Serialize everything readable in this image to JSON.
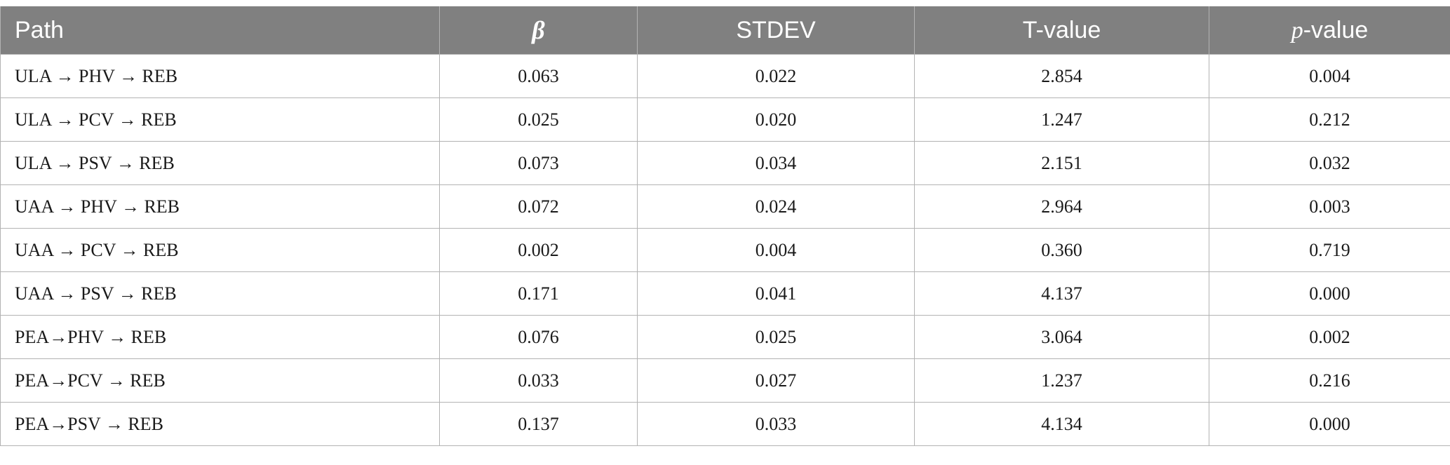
{
  "table": {
    "headers": {
      "path": "Path",
      "beta": "β",
      "stdev": "STDEV",
      "t_value": "T-value",
      "p_value_italic": "p",
      "p_value_rest": "-value"
    },
    "rows": [
      {
        "path": "ULA → PHV → REB",
        "beta": "0.063",
        "stdev": "0.022",
        "t": "2.854",
        "p": "0.004"
      },
      {
        "path": "ULA → PCV → REB",
        "beta": "0.025",
        "stdev": "0.020",
        "t": "1.247",
        "p": "0.212"
      },
      {
        "path": "ULA → PSV → REB",
        "beta": "0.073",
        "stdev": "0.034",
        "t": "2.151",
        "p": "0.032"
      },
      {
        "path": "UAA → PHV → REB",
        "beta": "0.072",
        "stdev": "0.024",
        "t": "2.964",
        "p": "0.003"
      },
      {
        "path": "UAA → PCV → REB",
        "beta": "0.002",
        "stdev": "0.004",
        "t": "0.360",
        "p": "0.719"
      },
      {
        "path": "UAA → PSV → REB",
        "beta": "0.171",
        "stdev": "0.041",
        "t": "4.137",
        "p": "0.000"
      },
      {
        "path": "PEA→PHV → REB",
        "beta": "0.076",
        "stdev": "0.025",
        "t": "3.064",
        "p": "0.002"
      },
      {
        "path": "PEA→PCV → REB",
        "beta": "0.033",
        "stdev": "0.027",
        "t": "1.237",
        "p": "0.216"
      },
      {
        "path": "PEA→PSV → REB",
        "beta": "0.137",
        "stdev": "0.033",
        "t": "4.134",
        "p": "0.000"
      }
    ]
  }
}
